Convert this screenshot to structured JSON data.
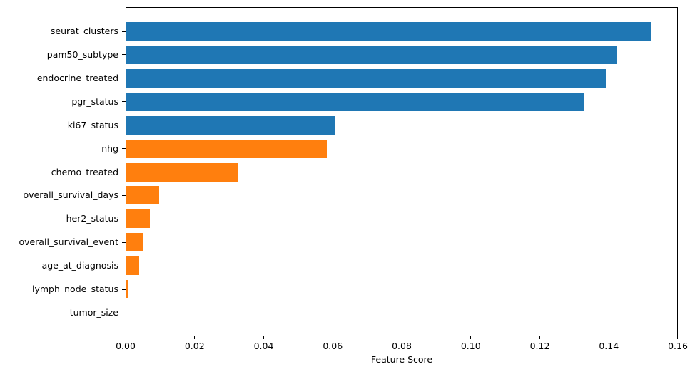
{
  "chart_data": {
    "type": "bar",
    "orientation": "horizontal",
    "title": "",
    "xlabel": "Feature Score",
    "ylabel": "",
    "categories": [
      "seurat_clusters",
      "pam50_subtype",
      "endocrine_treated",
      "pgr_status",
      "ki67_status",
      "nhg",
      "chemo_treated",
      "overall_survival_days",
      "her2_status",
      "overall_survival_event",
      "age_at_diagnosis",
      "lymph_node_status",
      "tumor_size"
    ],
    "values": [
      0.1525,
      0.1425,
      0.1393,
      0.133,
      0.0607,
      0.0582,
      0.0323,
      0.0096,
      0.0069,
      0.0047,
      0.0038,
      0.0004,
      0.0
    ],
    "bar_colors": [
      "#1f77b4",
      "#1f77b4",
      "#1f77b4",
      "#1f77b4",
      "#1f77b4",
      "#ff7f0e",
      "#ff7f0e",
      "#ff7f0e",
      "#ff7f0e",
      "#ff7f0e",
      "#ff7f0e",
      "#ff7f0e",
      "#ff7f0e"
    ],
    "xlim": [
      0,
      0.16
    ],
    "xticks": [
      0.0,
      0.02,
      0.04,
      0.06,
      0.08,
      0.1,
      0.12,
      0.14,
      0.16
    ],
    "xtick_labels": [
      "0.00",
      "0.02",
      "0.04",
      "0.06",
      "0.08",
      "0.10",
      "0.12",
      "0.14",
      "0.16"
    ],
    "grid": false,
    "legend": null
  },
  "colors": {
    "blue": "#1f77b4",
    "orange": "#ff7f0e",
    "axis": "#000000",
    "background": "#ffffff",
    "text": "#000000"
  }
}
